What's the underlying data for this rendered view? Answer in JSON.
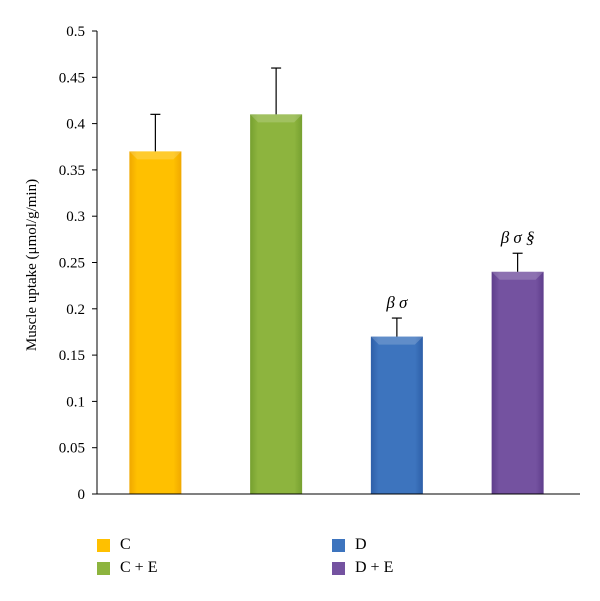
{
  "chart_data": {
    "type": "bar",
    "ylabel": "Muscle uptake (μmol/g/min)",
    "ylim": [
      0,
      0.5
    ],
    "yticks": [
      "0",
      "0.05",
      "0.1",
      "0.15",
      "0.2",
      "0.25",
      "0.3",
      "0.35",
      "0.4",
      "0.45",
      "0.5"
    ],
    "grid": false,
    "legend_placement": "bottom",
    "categories": [
      "C",
      "C + E",
      "D",
      "D + E"
    ],
    "values": [
      0.37,
      0.41,
      0.17,
      0.24
    ],
    "errors": [
      0.04,
      0.05,
      0.02,
      0.02
    ],
    "annotations": [
      "",
      "",
      "β σ",
      "β σ §"
    ],
    "colors": [
      "#FFC000",
      "#8DB43E",
      "#3D74BE",
      "#7452A0"
    ],
    "colors_dark": [
      "#F0A800",
      "#76A030",
      "#2E5FA8",
      "#5F3E8C"
    ]
  }
}
